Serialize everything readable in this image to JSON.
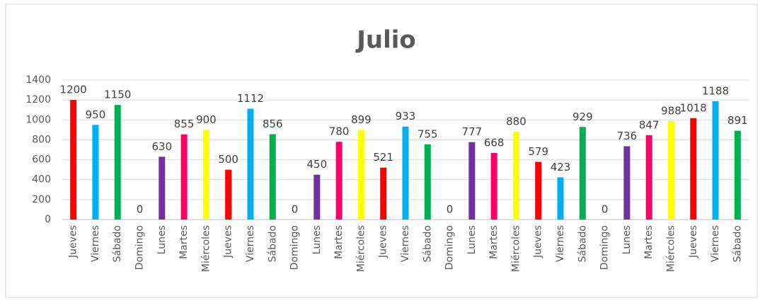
{
  "chart_data": {
    "type": "bar",
    "title": "Julio",
    "categories": [
      "Jueves",
      "Viernes",
      "Sábado",
      "Domingo",
      "Lunes",
      "Martes",
      "Miércoles",
      "Jueves",
      "Viernes",
      "Sábado",
      "Domingo",
      "Lunes",
      "Martes",
      "Miércoles",
      "Jueves",
      "Viernes",
      "Sábado",
      "Domingo",
      "Lunes",
      "Martes",
      "Miércoles",
      "Jueves",
      "Viernes",
      "Sábado",
      "Domingo",
      "Lunes",
      "Martes",
      "Miércoles",
      "Jueves",
      "Viernes",
      "Sábado"
    ],
    "values": [
      1200,
      950,
      1150,
      0,
      630,
      855,
      900,
      500,
      1112,
      856,
      0,
      450,
      780,
      899,
      521,
      933,
      755,
      0,
      777,
      668,
      880,
      579,
      423,
      929,
      0,
      736,
      847,
      988,
      1018,
      1188,
      891
    ],
    "day_colors": {
      "Jueves": "#ff0000",
      "Viernes": "#00b0f0",
      "Sábado": "#00b050",
      "Lunes": "#7030a0",
      "Martes": "#ff0066",
      "Miércoles": "#ffff00"
    },
    "ylim": [
      0,
      1400
    ],
    "yticks": [
      0,
      200,
      400,
      600,
      800,
      1000,
      1200,
      1400
    ],
    "grid": true
  }
}
